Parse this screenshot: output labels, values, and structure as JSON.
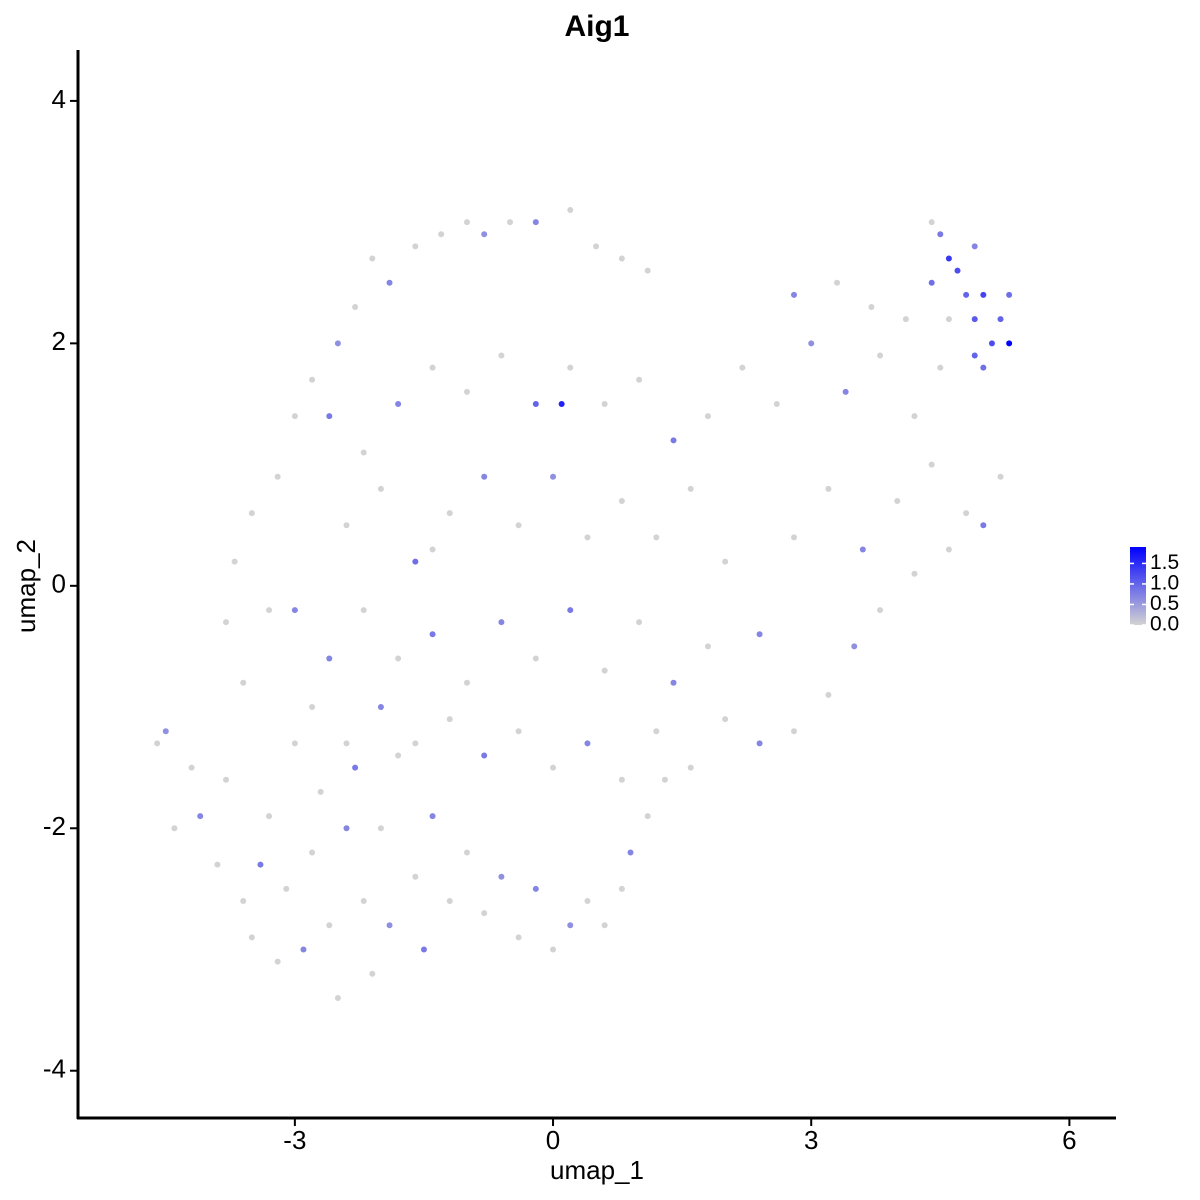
{
  "chart_data": {
    "type": "scatter",
    "title": "Aig1",
    "xlabel": "umap_1",
    "ylabel": "umap_2",
    "xlim": [
      -5.52,
      6.53
    ],
    "ylim": [
      -4.39,
      4.42
    ],
    "xticks": [
      -3,
      0,
      3,
      6
    ],
    "yticks": [
      -4,
      -2,
      0,
      2,
      4
    ],
    "color_low": "#d3d3d3",
    "color_high": "#0000ff",
    "colorbar": {
      "lim": [
        0,
        1.9
      ],
      "ticks": [
        {
          "value": 0,
          "label": "0.0"
        },
        {
          "value": 0.5,
          "label": "0.5"
        },
        {
          "value": 1,
          "label": "1.0"
        },
        {
          "value": 1.5,
          "label": "1.5"
        }
      ]
    },
    "x": [
      -4.6,
      -4.5,
      -4.2,
      -4.1,
      -3.9,
      -3.8,
      -3.6,
      -3.5,
      -3.4,
      -3.3,
      -3.2,
      -3.1,
      -3.0,
      -2.9,
      -2.8,
      -2.7,
      -2.6,
      -2.5,
      -2.4,
      -2.3,
      -2.2,
      -2.1,
      -2.0,
      -1.9,
      -1.8,
      -1.6,
      -1.5,
      -1.4,
      -1.2,
      -1.0,
      -0.8,
      -0.6,
      -0.4,
      -0.2,
      0.0,
      0.2,
      0.4,
      0.6,
      0.8,
      0.9,
      1.1,
      1.3,
      -3.6,
      -3.3,
      -3.0,
      -3.7,
      -3.5,
      -3.2,
      -3.0,
      -2.8,
      -2.5,
      -2.3,
      -2.1,
      -1.9,
      -1.6,
      -1.3,
      -1.0,
      -0.8,
      -0.5,
      -0.2,
      0.2,
      0.5,
      0.8,
      1.1,
      -2.6,
      -2.2,
      -1.8,
      -1.4,
      -1.0,
      -0.6,
      -0.2,
      0.2,
      0.6,
      1.0,
      1.4,
      -2.4,
      -2.0,
      -1.6,
      -1.2,
      -0.8,
      -0.4,
      0.0,
      0.4,
      0.8,
      1.2,
      1.6,
      -2.6,
      -2.2,
      -1.8,
      -1.4,
      -1.0,
      -0.6,
      -0.2,
      0.2,
      0.6,
      1.0,
      1.4,
      1.8,
      -2.8,
      -2.4,
      -2.0,
      -1.6,
      -1.2,
      -0.8,
      -0.4,
      0.0,
      0.4,
      0.8,
      1.2,
      1.6,
      2.0,
      2.4,
      2.8,
      3.2,
      3.5,
      3.8,
      4.2,
      4.6,
      5.0,
      5.2,
      2.0,
      2.4,
      2.8,
      3.2,
      3.6,
      4.0,
      4.4,
      4.8,
      1.8,
      2.2,
      2.6,
      3.0,
      3.4,
      3.8,
      4.2,
      4.5,
      2.8,
      3.3,
      3.7,
      4.1,
      4.4,
      4.5,
      4.6,
      4.7,
      4.8,
      4.9,
      5.0,
      5.1,
      5.2,
      5.3,
      5.3,
      4.9,
      5.0,
      4.6,
      4.4,
      4.9,
      0.1,
      -1.4,
      -3.8,
      -4.4
    ],
    "y": [
      -1.3,
      -1.2,
      -1.5,
      -1.9,
      -2.3,
      -1.6,
      -2.6,
      -2.9,
      -2.3,
      -1.9,
      -3.1,
      -2.5,
      -1.3,
      -3.0,
      -2.2,
      -1.7,
      -2.8,
      -3.4,
      -2.0,
      -1.5,
      -2.6,
      -3.2,
      -2.0,
      -2.8,
      -1.4,
      -2.4,
      -3.0,
      -1.9,
      -2.6,
      -2.2,
      -2.7,
      -2.4,
      -2.9,
      -2.5,
      -3.0,
      -2.8,
      -2.6,
      -2.8,
      -2.5,
      -2.2,
      -1.9,
      -1.6,
      -0.8,
      -0.2,
      -0.2,
      0.2,
      0.6,
      0.9,
      1.4,
      1.7,
      2.0,
      2.3,
      2.7,
      2.5,
      2.8,
      2.9,
      3.0,
      2.9,
      3.0,
      3.0,
      3.1,
      2.8,
      2.7,
      2.6,
      1.4,
      1.1,
      1.5,
      1.8,
      1.6,
      1.9,
      1.5,
      1.8,
      1.5,
      1.7,
      1.2,
      0.5,
      0.8,
      0.2,
      0.6,
      0.9,
      0.5,
      0.9,
      0.4,
      0.7,
      0.4,
      0.8,
      -0.6,
      -0.2,
      -0.6,
      -0.4,
      -0.8,
      -0.3,
      -0.6,
      -0.2,
      -0.7,
      -0.3,
      -0.8,
      -0.5,
      -1.0,
      -1.3,
      -1.0,
      -1.3,
      -1.1,
      -1.4,
      -1.2,
      -1.5,
      -1.3,
      -1.6,
      -1.2,
      -1.5,
      -1.1,
      -1.3,
      -1.2,
      -0.9,
      -0.5,
      -0.2,
      0.1,
      0.3,
      0.5,
      0.9,
      0.2,
      -0.4,
      0.4,
      0.8,
      0.3,
      0.7,
      1.0,
      0.6,
      1.4,
      1.8,
      1.5,
      2.0,
      1.6,
      1.9,
      1.4,
      1.8,
      2.4,
      2.5,
      2.3,
      2.2,
      2.5,
      2.9,
      2.7,
      2.6,
      2.4,
      2.2,
      2.4,
      2.0,
      2.2,
      2.4,
      2.0,
      1.9,
      1.8,
      2.2,
      3.0,
      2.8,
      1.5,
      0.3,
      -0.3,
      -2.0
    ],
    "values": [
      0,
      0.6,
      0,
      0.7,
      0,
      0,
      0,
      0,
      0.8,
      0,
      0,
      0,
      0,
      0.7,
      0,
      0,
      0,
      0,
      0.7,
      0.8,
      0,
      0,
      0,
      0.6,
      0,
      0,
      0.8,
      0.7,
      0,
      0,
      0,
      0.6,
      0,
      0.7,
      0,
      0.6,
      0,
      0,
      0,
      0.7,
      0,
      0,
      0,
      0,
      0.7,
      0,
      0,
      0,
      0,
      0,
      0.6,
      0,
      0,
      0.7,
      0,
      0,
      0,
      0.6,
      0,
      0.7,
      0,
      0,
      0,
      0,
      0.8,
      0,
      0.7,
      0,
      0,
      0,
      1.0,
      0,
      0,
      0,
      0.8,
      0,
      0,
      0.9,
      0,
      0.7,
      0,
      0.6,
      0,
      0,
      0,
      0,
      0.7,
      0,
      0,
      0.8,
      0,
      0.7,
      0,
      0.8,
      0,
      0,
      0.7,
      0,
      0,
      0,
      0.7,
      0,
      0,
      0.8,
      0,
      0,
      0.7,
      0,
      0,
      0,
      0,
      0.7,
      0,
      0,
      0.6,
      0,
      0,
      0,
      0.8,
      0,
      0,
      0.7,
      0,
      0,
      0.7,
      0,
      0,
      0,
      0,
      0,
      0,
      0.6,
      0.7,
      0,
      0,
      0,
      0.7,
      0,
      0,
      0,
      0.9,
      0.8,
      1.4,
      1.2,
      1.0,
      1.1,
      1.3,
      1.2,
      1.0,
      0.9,
      1.9,
      1.0,
      0.9,
      0,
      0,
      0.7,
      1.6,
      0,
      0,
      0
    ]
  }
}
